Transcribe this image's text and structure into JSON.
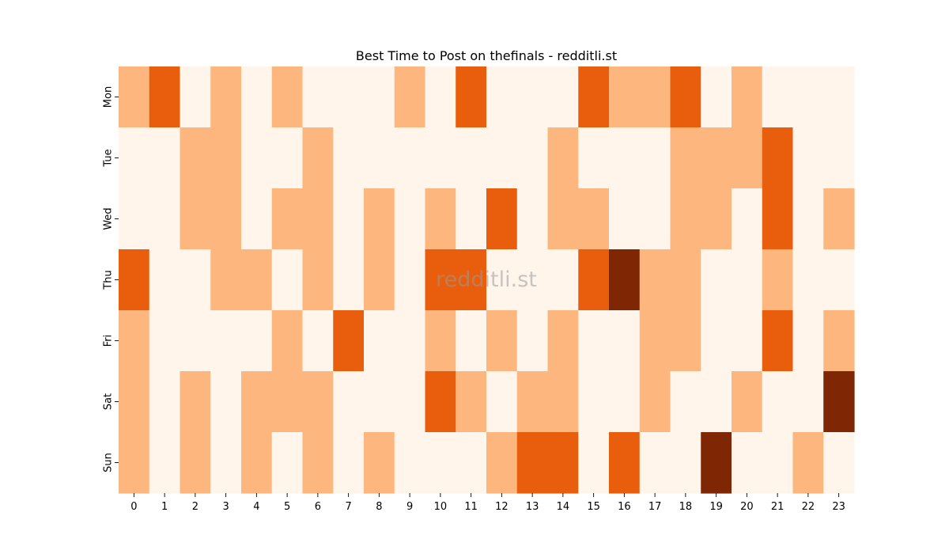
{
  "chart_data": {
    "type": "heatmap",
    "title": "Best Time to Post on thefinals - redditli.st",
    "watermark": "redditli.st",
    "xlabel": "",
    "ylabel": "",
    "x_categories": [
      "0",
      "1",
      "2",
      "3",
      "4",
      "5",
      "6",
      "7",
      "8",
      "9",
      "10",
      "11",
      "12",
      "13",
      "14",
      "15",
      "16",
      "17",
      "18",
      "19",
      "20",
      "21",
      "22",
      "23"
    ],
    "y_categories": [
      "Mon",
      "Tue",
      "Wed",
      "Thu",
      "Fri",
      "Sat",
      "Sun"
    ],
    "values": [
      [
        1,
        2,
        0,
        1,
        0,
        1,
        0,
        0,
        0,
        1,
        0,
        2,
        0,
        0,
        0,
        2,
        1,
        1,
        2,
        0,
        1,
        0,
        0,
        0
      ],
      [
        0,
        0,
        1,
        1,
        0,
        0,
        1,
        0,
        0,
        0,
        0,
        0,
        0,
        0,
        1,
        0,
        0,
        0,
        1,
        1,
        1,
        2,
        0,
        0
      ],
      [
        0,
        0,
        1,
        1,
        0,
        1,
        1,
        0,
        1,
        0,
        1,
        0,
        2,
        0,
        1,
        1,
        0,
        0,
        1,
        1,
        0,
        2,
        0,
        1
      ],
      [
        2,
        0,
        0,
        1,
        1,
        0,
        1,
        0,
        1,
        0,
        2,
        2,
        0,
        0,
        0,
        2,
        3,
        1,
        1,
        0,
        0,
        1,
        0,
        0
      ],
      [
        1,
        0,
        0,
        0,
        0,
        1,
        0,
        2,
        0,
        0,
        1,
        0,
        1,
        0,
        1,
        0,
        0,
        1,
        1,
        0,
        0,
        2,
        0,
        1
      ],
      [
        1,
        0,
        1,
        0,
        1,
        1,
        1,
        0,
        0,
        0,
        2,
        1,
        0,
        1,
        1,
        0,
        0,
        1,
        0,
        0,
        1,
        0,
        0,
        3
      ],
      [
        1,
        0,
        1,
        0,
        1,
        0,
        1,
        0,
        1,
        0,
        0,
        0,
        1,
        2,
        2,
        0,
        2,
        0,
        0,
        3,
        0,
        0,
        1,
        0
      ]
    ],
    "colormap": [
      "#fff5eb",
      "#fdb77e",
      "#e95e0d",
      "#7f2704"
    ],
    "colorbar": false,
    "grid": false
  }
}
